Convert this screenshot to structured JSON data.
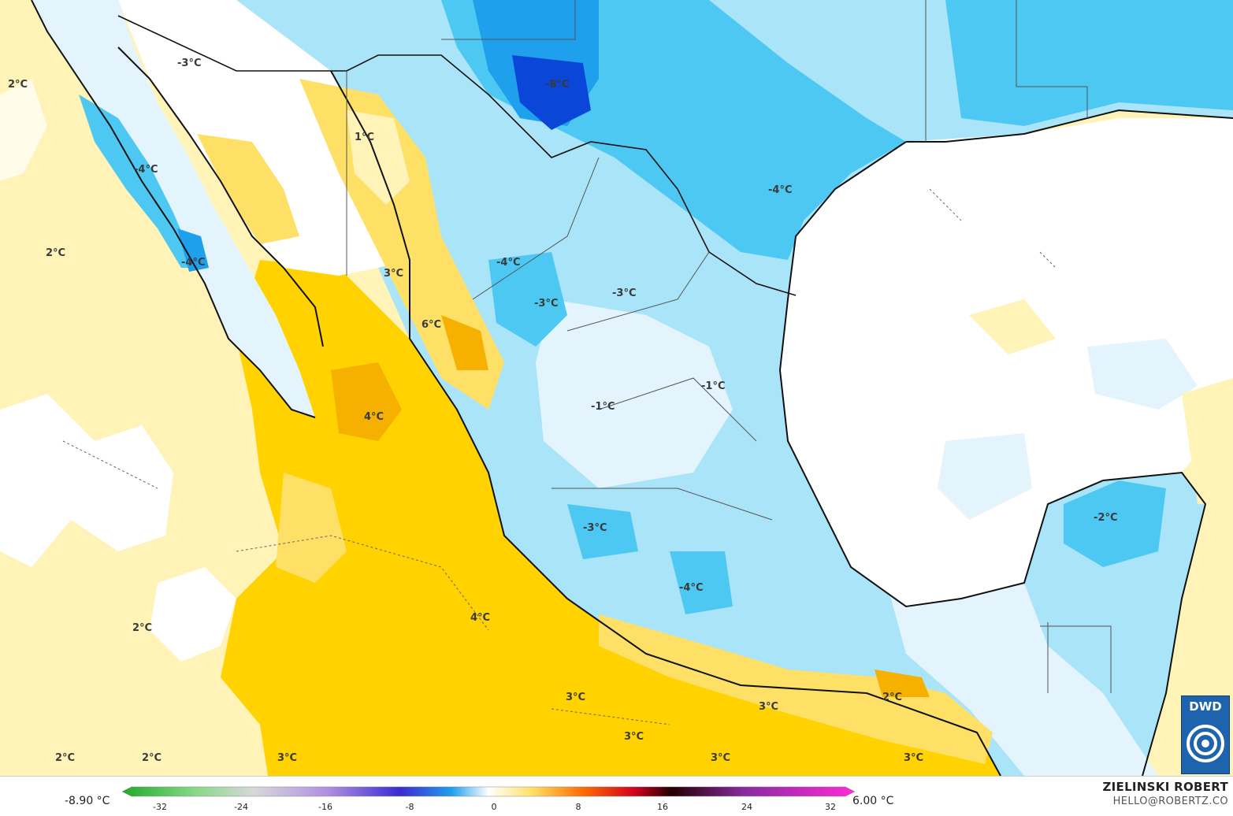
{
  "colors": {
    "light_yellow": "#fff3b8",
    "yellow": "#ffe066",
    "deep_yellow": "#ffd200",
    "orange": "#f5b000",
    "white": "#ffffff",
    "pale_blue": "#e3f4fc",
    "light_blue": "#a9e4f8",
    "mid_blue": "#4cc8f2",
    "blue": "#1fa0ec",
    "deep_blue": "#0a46d8",
    "border": "#111111",
    "state_border": "#555555"
  },
  "labels": [
    {
      "text": "2°C"
    },
    {
      "text": "-3°C"
    },
    {
      "text": "-8°C"
    },
    {
      "text": "1°C"
    },
    {
      "text": "-4°C"
    },
    {
      "text": "-4°C"
    },
    {
      "text": "2°C"
    },
    {
      "text": "-4°C"
    },
    {
      "text": "-4°C"
    },
    {
      "text": "3°C"
    },
    {
      "text": "-3°C"
    },
    {
      "text": "-3°C"
    },
    {
      "text": "6°C"
    },
    {
      "text": "4°C"
    },
    {
      "text": "-1°C"
    },
    {
      "text": "-1°C"
    },
    {
      "text": "-2°C"
    },
    {
      "text": "-3°C"
    },
    {
      "text": "-4°C"
    },
    {
      "text": "4°C"
    },
    {
      "text": "2°C"
    },
    {
      "text": "3°C"
    },
    {
      "text": "3°C"
    },
    {
      "text": "2°C"
    },
    {
      "text": "3°C"
    },
    {
      "text": "2°C"
    },
    {
      "text": "2°C"
    },
    {
      "text": "3°C"
    },
    {
      "text": "3°C"
    },
    {
      "text": "3°C"
    }
  ],
  "colorbar": {
    "min_label": "-8.90 °C",
    "max_label": "6.00 °C",
    "ticks": [
      "-32",
      "-24",
      "-16",
      "-8",
      "0",
      "8",
      "16",
      "24",
      "32"
    ]
  },
  "credits": {
    "author": "ZIELINSKI ROBERT",
    "email": "HELLO@ROBERTZ.CO"
  },
  "logo": {
    "text": "DWD",
    "icon": "dwd-swirl-icon"
  }
}
